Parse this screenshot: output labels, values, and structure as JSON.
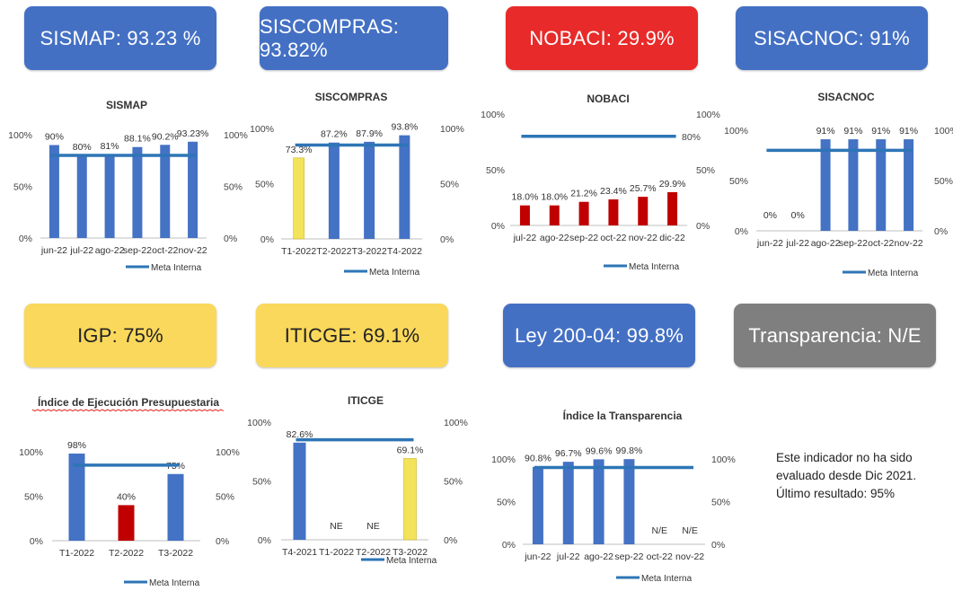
{
  "tiles": [
    {
      "label": "SISMAP: 93.23 %",
      "color": "#4470c4",
      "text_color": "#ffffff"
    },
    {
      "label": "SISCOMPRAS: 93.82%",
      "color": "#4470c4",
      "text_color": "#ffffff"
    },
    {
      "label": "NOBACI: 29.9%",
      "color": "#e82a2a",
      "text_color": "#ffffff"
    },
    {
      "label": "SISACNOC: 91%",
      "color": "#4470c4",
      "text_color": "#ffffff"
    },
    {
      "label": "IGP: 75%",
      "color": "#fad85c",
      "text_color": "#222222"
    },
    {
      "label": "ITICGE: 69.1%",
      "color": "#fad85c",
      "text_color": "#222222"
    },
    {
      "label": "Ley 200-04: 99.8%",
      "color": "#4470c4",
      "text_color": "#ffffff"
    },
    {
      "label": "Transparencia: N/E",
      "color": "#7f7f7f",
      "text_color": "#ffffff"
    }
  ],
  "colors": {
    "bar_blue": "#4472c4",
    "bar_red": "#c00000",
    "bar_yellow": "#f3e35a",
    "meta_line": "#2e75b6"
  },
  "legend_label": "Meta Interna",
  "note": {
    "lines": [
      "Este indicador no ha sido",
      "evaluado desde Dic 2021.",
      "Último resultado: 95%"
    ]
  },
  "chart_data": [
    {
      "type": "bar",
      "title": "SISMAP",
      "categories": [
        "jun-22",
        "jul-22",
        "ago-22",
        "sep-22",
        "oct-22",
        "nov-22"
      ],
      "values": [
        90,
        80,
        81,
        88.1,
        90.2,
        93.23
      ],
      "data_labels": [
        "90%",
        "80%",
        "81%",
        "88.1%",
        "90.2%",
        "93.23%"
      ],
      "bar_colors": [
        "blue",
        "blue",
        "blue",
        "blue",
        "blue",
        "blue"
      ],
      "meta_interna": 80,
      "ylim": [
        0,
        100
      ],
      "y_ticks": [
        "0%",
        "50%",
        "100%"
      ],
      "y2_ticks": [
        "0%",
        "50%",
        "100%"
      ],
      "legend": "bottom"
    },
    {
      "type": "bar",
      "title": "SISCOMPRAS",
      "categories": [
        "T1-2022",
        "T2-2022",
        "T3-2022",
        "T4-2022"
      ],
      "values": [
        73.3,
        87.2,
        87.9,
        93.8
      ],
      "data_labels": [
        "73.3%",
        "87.2%",
        "87.9%",
        "93.8%"
      ],
      "bar_colors": [
        "yellow",
        "blue",
        "blue",
        "blue"
      ],
      "meta_interna": 85,
      "ylim": [
        0,
        100
      ],
      "y_ticks": [
        "0%",
        "50%",
        "100%"
      ],
      "y2_ticks": [
        "0%",
        "50%",
        "100%"
      ],
      "legend": "bottom"
    },
    {
      "type": "bar",
      "title": "NOBACI",
      "categories": [
        "jul-22",
        "ago-22",
        "sep-22",
        "oct-22",
        "nov-22",
        "dic-22"
      ],
      "values": [
        18.0,
        18.0,
        21.2,
        23.4,
        25.7,
        29.9
      ],
      "data_labels": [
        "18.0%",
        "18.0%",
        "21.2%",
        "23.4%",
        "25.7%",
        "29.9%"
      ],
      "bar_colors": [
        "red",
        "red",
        "red",
        "red",
        "red",
        "red"
      ],
      "meta_interna": 80,
      "ylim": [
        0,
        100
      ],
      "y_ticks": [
        "0%",
        "50%",
        "100%"
      ],
      "y2_ticks": [
        "0%",
        "50%",
        "100%"
      ],
      "y2_marker": "80%",
      "legend": "bottom"
    },
    {
      "type": "bar",
      "title": "SISACNOC",
      "categories": [
        "jun-22",
        "jul-22",
        "ago-22",
        "sep-22",
        "oct-22",
        "nov-22"
      ],
      "values": [
        0,
        0,
        91,
        91,
        91,
        91
      ],
      "data_labels": [
        "0%",
        "0%",
        "91%",
        "91%",
        "91%",
        "91%"
      ],
      "bar_colors": [
        "blue",
        "blue",
        "blue",
        "blue",
        "blue",
        "blue"
      ],
      "meta_interna": 80,
      "ylim": [
        0,
        100
      ],
      "y_ticks": [
        "0%",
        "50%",
        "100%"
      ],
      "y2_ticks": [
        "0%",
        "50%",
        "100%"
      ],
      "legend": "bottom"
    },
    {
      "type": "bar",
      "title": "Índice de Ejecución Presupuestaria",
      "categories": [
        "T1-2022",
        "T2-2022",
        "T3-2022"
      ],
      "values": [
        98,
        40,
        75
      ],
      "data_labels": [
        "98%",
        "40%",
        "75%"
      ],
      "bar_colors": [
        "blue",
        "red",
        "blue"
      ],
      "meta_interna": 85,
      "ylim": [
        0,
        100
      ],
      "y_ticks": [
        "0%",
        "50%",
        "100%"
      ],
      "y2_ticks": [
        "0%",
        "50%",
        "100%"
      ],
      "legend": "bottom"
    },
    {
      "type": "bar",
      "title": "ITICGE",
      "categories": [
        "T4-2021",
        "T1-2022",
        "T2-2022",
        "T3-2022"
      ],
      "values": [
        82.6,
        null,
        null,
        69.1
      ],
      "data_labels": [
        "82.6%",
        "NE",
        "NE",
        "69.1%"
      ],
      "bar_colors": [
        "blue",
        "blue",
        "blue",
        "yellow"
      ],
      "meta_interna": 85,
      "ylim": [
        0,
        100
      ],
      "y_ticks": [
        "0%",
        "50%",
        "100%"
      ],
      "y2_ticks": [
        "0%",
        "50%",
        "100%"
      ],
      "legend": "bottom"
    },
    {
      "type": "bar",
      "title": "Índice la Transparencia",
      "categories": [
        "jun-22",
        "jul-22",
        "ago-22",
        "sep-22",
        "oct-22",
        "nov-22"
      ],
      "values": [
        90.8,
        96.7,
        99.6,
        99.8,
        null,
        null
      ],
      "data_labels": [
        "90.8%",
        "96.7%",
        "99.6%",
        "99.8%",
        "N/E",
        "N/E"
      ],
      "bar_colors": [
        "blue",
        "blue",
        "blue",
        "blue",
        "blue",
        "blue"
      ],
      "meta_interna": 90,
      "ylim": [
        0,
        100
      ],
      "y_ticks": [
        "0%",
        "50%",
        "100%"
      ],
      "y2_ticks": [
        "0%",
        "50%",
        "100%"
      ],
      "legend": "bottom"
    }
  ]
}
